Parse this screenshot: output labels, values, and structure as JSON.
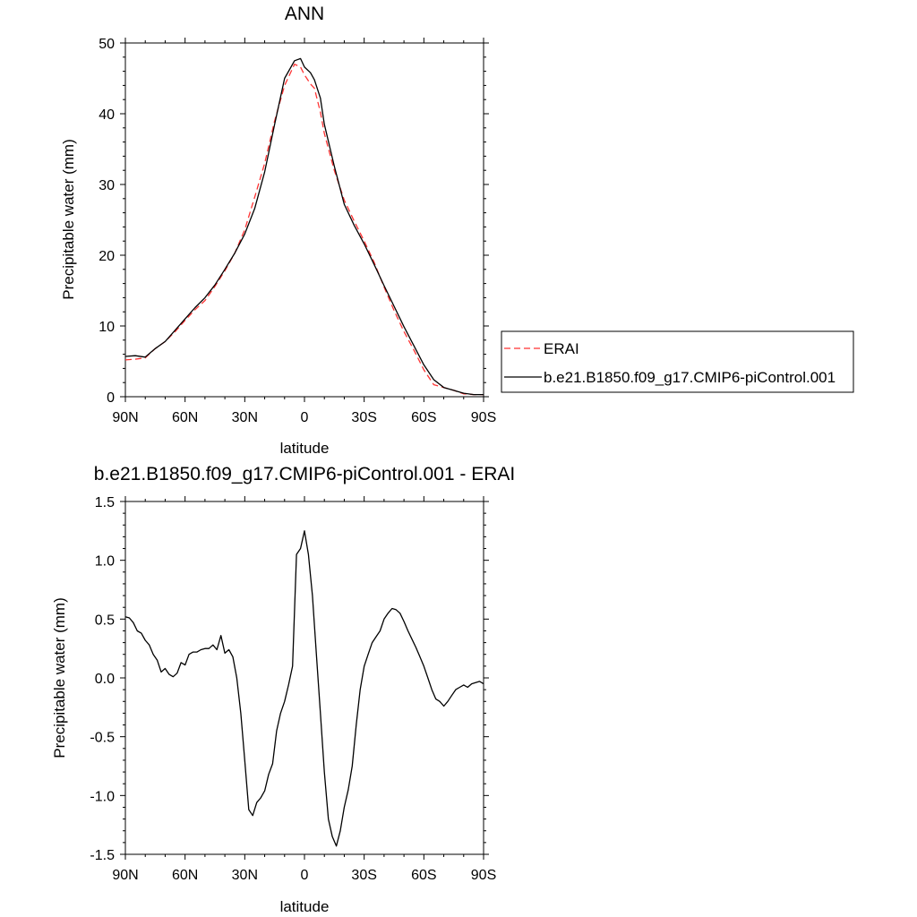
{
  "chart_data": [
    {
      "type": "line",
      "title": "ANN",
      "xlabel": "latitude",
      "ylabel": "Precipitable water (mm)",
      "xlim": [
        90,
        -90
      ],
      "ylim": [
        0,
        50
      ],
      "x_ticks": [
        90,
        60,
        30,
        0,
        -30,
        -60,
        -90
      ],
      "x_tick_labels": [
        "90N",
        "60N",
        "30N",
        "0",
        "30S",
        "60S",
        "90S"
      ],
      "y_ticks": [
        0,
        10,
        20,
        30,
        40,
        50
      ],
      "y_tick_labels": [
        "0",
        "10",
        "20",
        "30",
        "40",
        "50"
      ],
      "legend_position": "right",
      "series": [
        {
          "name": "ERAI",
          "color": "#ff3333",
          "style": "dashed",
          "x": [
            90,
            85,
            80,
            75,
            70,
            65,
            60,
            55,
            50,
            45,
            40,
            35,
            30,
            25,
            20,
            15,
            10,
            5,
            2,
            0,
            -3,
            -5,
            -8,
            -10,
            -15,
            -20,
            -25,
            -30,
            -35,
            -40,
            -45,
            -50,
            -55,
            -60,
            -65,
            -70,
            -75,
            -80,
            -85,
            -90
          ],
          "values": [
            5.2,
            5.3,
            5.5,
            6.8,
            7.8,
            9.2,
            10.8,
            12.3,
            13.6,
            15.6,
            17.8,
            20.3,
            23.6,
            28.2,
            33.0,
            39.0,
            44.0,
            47.0,
            46.6,
            45.5,
            44.2,
            43.6,
            40.2,
            37.2,
            32.0,
            27.8,
            24.8,
            22.0,
            19.0,
            15.5,
            12.2,
            9.2,
            6.6,
            3.8,
            1.7,
            1.3,
            0.9,
            0.4,
            0.3,
            0.3
          ]
        },
        {
          "name": "b.e21.B1850.f09_g17.CMIP6-piControl.001",
          "color": "#000000",
          "style": "solid",
          "x": [
            90,
            85,
            80,
            75,
            70,
            65,
            60,
            55,
            50,
            45,
            40,
            35,
            30,
            25,
            20,
            15,
            10,
            5,
            2,
            0,
            -3,
            -5,
            -8,
            -10,
            -15,
            -20,
            -25,
            -30,
            -35,
            -40,
            -45,
            -50,
            -55,
            -60,
            -65,
            -70,
            -75,
            -80,
            -85,
            -90
          ],
          "values": [
            5.7,
            5.8,
            5.6,
            6.8,
            7.8,
            9.4,
            11.0,
            12.6,
            14.0,
            15.8,
            18.0,
            20.3,
            23.0,
            26.6,
            31.8,
            38.5,
            45.0,
            47.5,
            47.8,
            46.6,
            45.8,
            44.8,
            42.2,
            38.5,
            32.6,
            27.2,
            24.2,
            21.6,
            18.7,
            15.7,
            12.8,
            9.9,
            7.2,
            4.5,
            2.4,
            1.3,
            0.9,
            0.5,
            0.3,
            0.3
          ]
        }
      ]
    },
    {
      "type": "line",
      "title": "b.e21.B1850.f09_g17.CMIP6-piControl.001 - ERAI",
      "xlabel": "latitude",
      "ylabel": "Precipitable water (mm)",
      "xlim": [
        90,
        -90
      ],
      "ylim": [
        -1.5,
        1.5
      ],
      "x_ticks": [
        90,
        60,
        30,
        0,
        -30,
        -60,
        -90
      ],
      "x_tick_labels": [
        "90N",
        "60N",
        "30N",
        "0",
        "30S",
        "60S",
        "90S"
      ],
      "y_ticks": [
        -1.5,
        -1.0,
        -0.5,
        0.0,
        0.5,
        1.0,
        1.5
      ],
      "y_tick_labels": [
        "-1.5",
        "-1.0",
        "-0.5",
        "0.0",
        "0.5",
        "1.0",
        "1.5"
      ],
      "series": [
        {
          "color": "#000000",
          "style": "solid",
          "x": [
            90,
            88,
            86,
            84,
            82,
            80,
            78,
            76,
            74,
            72,
            70,
            68,
            66,
            64,
            62,
            60,
            58,
            56,
            54,
            52,
            50,
            48,
            46,
            44,
            42,
            40,
            38,
            36,
            34,
            32,
            30,
            28,
            26,
            24,
            22,
            20,
            18,
            16,
            14,
            12,
            10,
            8,
            6,
            4,
            2,
            0,
            -2,
            -4,
            -6,
            -8,
            -10,
            -12,
            -14,
            -16,
            -18,
            -20,
            -22,
            -24,
            -26,
            -28,
            -30,
            -32,
            -34,
            -36,
            -38,
            -40,
            -42,
            -44,
            -46,
            -48,
            -50,
            -52,
            -54,
            -56,
            -58,
            -60,
            -62,
            -64,
            -66,
            -68,
            -70,
            -72,
            -74,
            -76,
            -78,
            -80,
            -82,
            -84,
            -86,
            -88,
            -90
          ],
          "values": [
            0.52,
            0.51,
            0.47,
            0.4,
            0.38,
            0.32,
            0.28,
            0.2,
            0.15,
            0.05,
            0.08,
            0.03,
            0.01,
            0.04,
            0.13,
            0.11,
            0.2,
            0.22,
            0.22,
            0.24,
            0.25,
            0.25,
            0.28,
            0.24,
            0.36,
            0.21,
            0.24,
            0.18,
            0.0,
            -0.3,
            -0.7,
            -1.12,
            -1.17,
            -1.06,
            -1.02,
            -0.96,
            -0.82,
            -0.73,
            -0.45,
            -0.3,
            -0.2,
            -0.06,
            0.1,
            1.05,
            1.1,
            1.25,
            1.05,
            0.7,
            0.2,
            -0.3,
            -0.8,
            -1.2,
            -1.35,
            -1.43,
            -1.3,
            -1.1,
            -0.95,
            -0.75,
            -0.4,
            -0.1,
            0.1,
            0.2,
            0.3,
            0.35,
            0.4,
            0.5,
            0.55,
            0.59,
            0.58,
            0.55,
            0.48,
            0.4,
            0.33,
            0.26,
            0.18,
            0.1,
            0.0,
            -0.1,
            -0.18,
            -0.2,
            -0.24,
            -0.2,
            -0.15,
            -0.1,
            -0.08,
            -0.06,
            -0.08,
            -0.05,
            -0.04,
            -0.03,
            -0.05
          ]
        }
      ]
    }
  ]
}
